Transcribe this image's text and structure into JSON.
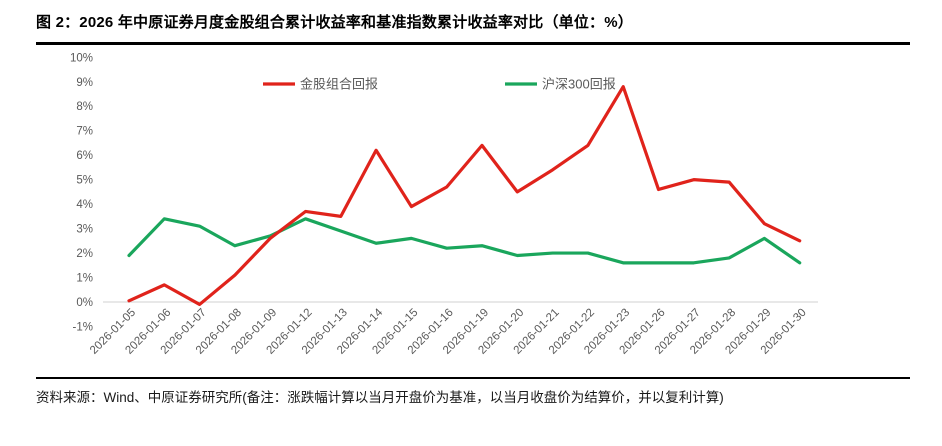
{
  "header": {
    "title": "图 2：2026 年中原证券月度金股组合累计收益率和基准指数累计收益率对比（单位：%）"
  },
  "footer": {
    "source": "资料来源：Wind、中原证券研究所(备注：涨跌幅计算以当月开盘价为基准，以当月收盘价为结算价，并以复利计算)"
  },
  "colors": {
    "portfolio_line": "#e0231b",
    "benchmark_line": "#1aa65c",
    "tick_label": "#595959",
    "legend_label": "#595959",
    "gridline": "#d9d9d9",
    "divider": "#000000"
  },
  "chart_data": {
    "type": "line",
    "title": "",
    "xlabel": "",
    "ylabel": "",
    "ylim": [
      -1,
      10
    ],
    "ytick_step": 1,
    "yticks": [
      "10%",
      "9%",
      "8%",
      "7%",
      "6%",
      "5%",
      "4%",
      "3%",
      "2%",
      "1%",
      "0%",
      "-1%"
    ],
    "grid": "horizontal line at 0% only",
    "legend_position": "top-center-inside",
    "categories": [
      "2026-01-05",
      "2026-01-06",
      "2026-01-07",
      "2026-01-08",
      "2026-01-09",
      "2026-01-12",
      "2026-01-13",
      "2026-01-14",
      "2026-01-15",
      "2026-01-16",
      "2026-01-19",
      "2026-01-20",
      "2026-01-21",
      "2026-01-22",
      "2026-01-23",
      "2026-01-26",
      "2026-01-27",
      "2026-01-28",
      "2026-01-29",
      "2026-01-30"
    ],
    "series": [
      {
        "name": "金股组合回报",
        "color": "#e0231b",
        "values": [
          0.05,
          0.7,
          -0.1,
          1.1,
          2.6,
          3.7,
          3.5,
          6.2,
          3.9,
          4.7,
          6.4,
          4.5,
          5.4,
          6.4,
          8.8,
          4.6,
          5.0,
          4.9,
          3.2,
          2.5
        ]
      },
      {
        "name": "沪深300回报",
        "color": "#1aa65c",
        "values": [
          1.9,
          3.4,
          3.1,
          2.3,
          2.7,
          3.4,
          2.9,
          2.4,
          2.6,
          2.2,
          2.3,
          1.9,
          2.0,
          2.0,
          1.6,
          1.6,
          1.6,
          1.8,
          2.6,
          1.6
        ]
      }
    ]
  }
}
